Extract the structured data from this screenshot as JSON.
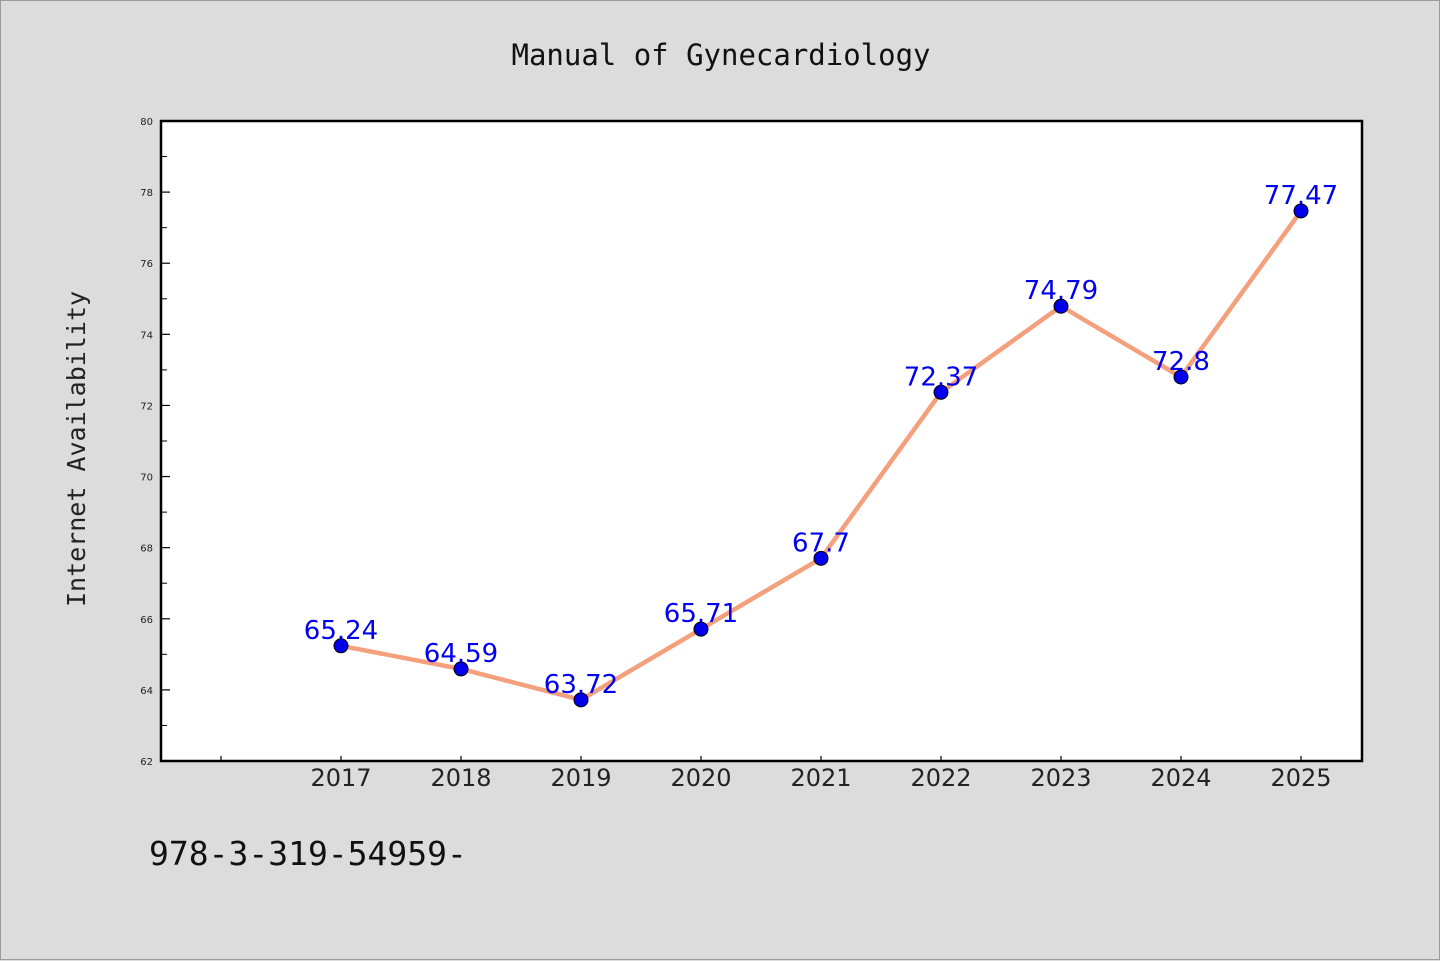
{
  "chart_data": {
    "type": "line",
    "title": "Manual of Gynecardiology",
    "xlabel": "",
    "ylabel": "Internet Availability",
    "categories": [
      "2017",
      "2018",
      "2019",
      "2020",
      "2021",
      "2022",
      "2023",
      "2024",
      "2025"
    ],
    "values": [
      65.24,
      64.59,
      63.72,
      65.71,
      67.7,
      72.37,
      74.79,
      72.8,
      77.47
    ],
    "data_labels": [
      "65.24",
      "64.59",
      "63.72",
      "65.71",
      "67.7",
      "72.37",
      "74.79",
      "72.8",
      "77.47"
    ],
    "ylim": [
      62,
      80
    ],
    "yticks": [
      62,
      64,
      66,
      68,
      70,
      72,
      74,
      76,
      78,
      80
    ],
    "grid": false,
    "legend": "none",
    "colors": {
      "line": "#f4a07c",
      "marker": "#0000ee",
      "label": "#0000ee"
    }
  },
  "footer": {
    "text": "978-3-319-54959-"
  }
}
